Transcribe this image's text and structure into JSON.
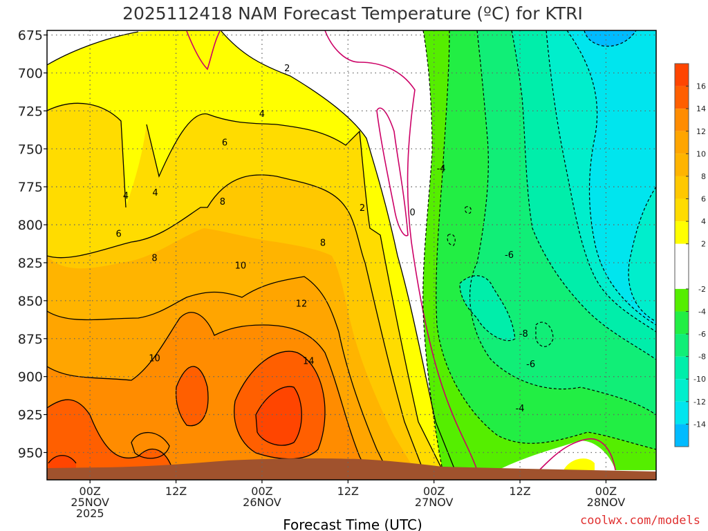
{
  "chart_data": {
    "type": "heatmap",
    "title": "2025112418 NAM Forecast Temperature (ºC) for KTRI",
    "xlabel": "Forecast Time (UTC)",
    "ylabel": "",
    "credit": "coolwx.com/models",
    "x_range_hours": [
      -6,
      79
    ],
    "ylim": [
      968,
      672
    ],
    "y_ticks": [
      {
        "label": "675",
        "value": 675
      },
      {
        "label": "700",
        "value": 700
      },
      {
        "label": "725",
        "value": 725
      },
      {
        "label": "750",
        "value": 750
      },
      {
        "label": "775",
        "value": 775
      },
      {
        "label": "800",
        "value": 800
      },
      {
        "label": "825",
        "value": 825
      },
      {
        "label": "850",
        "value": 850
      },
      {
        "label": "875",
        "value": 875
      },
      {
        "label": "900",
        "value": 900
      },
      {
        "label": "925",
        "value": 925
      },
      {
        "label": "950",
        "value": 950
      }
    ],
    "x_ticks": [
      {
        "hour": 0,
        "lines": [
          "00Z",
          "25NOV",
          "2025"
        ]
      },
      {
        "hour": 12,
        "lines": [
          "12Z"
        ]
      },
      {
        "hour": 24,
        "lines": [
          "00Z",
          "26NOV"
        ]
      },
      {
        "hour": 36,
        "lines": [
          "12Z"
        ]
      },
      {
        "hour": 48,
        "lines": [
          "00Z",
          "27NOV"
        ]
      },
      {
        "hour": 60,
        "lines": [
          "12Z"
        ]
      },
      {
        "hour": 72,
        "lines": [
          "00Z",
          "28NOV"
        ]
      }
    ],
    "grid": true,
    "colorbar": {
      "placement": "right",
      "ticks": [
        "16",
        "14",
        "12",
        "10",
        "8",
        "6",
        "4",
        "2",
        "-2",
        "-4",
        "-6",
        "-8",
        "-10",
        "-12",
        "-14"
      ],
      "bands": [
        {
          "min": 16,
          "max": 18,
          "color": "#ff4500"
        },
        {
          "min": 14,
          "max": 16,
          "color": "#ff5f00"
        },
        {
          "min": 12,
          "max": 14,
          "color": "#ff8c00"
        },
        {
          "min": 10,
          "max": 12,
          "color": "#ffa500"
        },
        {
          "min": 8,
          "max": 10,
          "color": "#ffb400"
        },
        {
          "min": 6,
          "max": 8,
          "color": "#ffc800"
        },
        {
          "min": 4,
          "max": 6,
          "color": "#ffdc00"
        },
        {
          "min": 2,
          "max": 4,
          "color": "#ffff00"
        },
        {
          "min": -2,
          "max": 2,
          "color": "#ffffff"
        },
        {
          "min": -4,
          "max": -2,
          "color": "#55ee00"
        },
        {
          "min": -6,
          "max": -4,
          "color": "#22ee44"
        },
        {
          "min": -8,
          "max": -6,
          "color": "#11ee77"
        },
        {
          "min": -10,
          "max": -8,
          "color": "#00eeaa"
        },
        {
          "min": -12,
          "max": -10,
          "color": "#00eecc"
        },
        {
          "min": -14,
          "max": -12,
          "color": "#00e5ee"
        },
        {
          "min": -16,
          "max": -14,
          "color": "#00bbff"
        }
      ]
    },
    "contour_labels": [
      {
        "text": "2",
        "hour": 27.5,
        "pressure": 697
      },
      {
        "text": "4",
        "hour": 24.0,
        "pressure": 727
      },
      {
        "text": "6",
        "hour": 18.8,
        "pressure": 746
      },
      {
        "text": "4",
        "hour": 5.0,
        "pressure": 781
      },
      {
        "text": "4",
        "hour": 9.1,
        "pressure": 779
      },
      {
        "text": "8",
        "hour": 18.5,
        "pressure": 785
      },
      {
        "text": "2",
        "hour": 38.0,
        "pressure": 789
      },
      {
        "text": "0",
        "hour": 45.0,
        "pressure": 792
      },
      {
        "text": "6",
        "hour": 4.0,
        "pressure": 806
      },
      {
        "text": "8",
        "hour": 32.5,
        "pressure": 812
      },
      {
        "text": "8",
        "hour": 9.0,
        "pressure": 822
      },
      {
        "text": "10",
        "hour": 21.0,
        "pressure": 827
      },
      {
        "text": "12",
        "hour": 29.5,
        "pressure": 852
      },
      {
        "text": "10",
        "hour": 9.0,
        "pressure": 888
      },
      {
        "text": "14",
        "hour": 30.5,
        "pressure": 890
      },
      {
        "text": "-4",
        "hour": 49.0,
        "pressure": 763
      },
      {
        "text": "-6",
        "hour": 58.5,
        "pressure": 820
      },
      {
        "text": "-8",
        "hour": 60.5,
        "pressure": 872
      },
      {
        "text": "-6",
        "hour": 61.5,
        "pressure": 892
      },
      {
        "text": "-4",
        "hour": 60.0,
        "pressure": 921
      }
    ]
  }
}
